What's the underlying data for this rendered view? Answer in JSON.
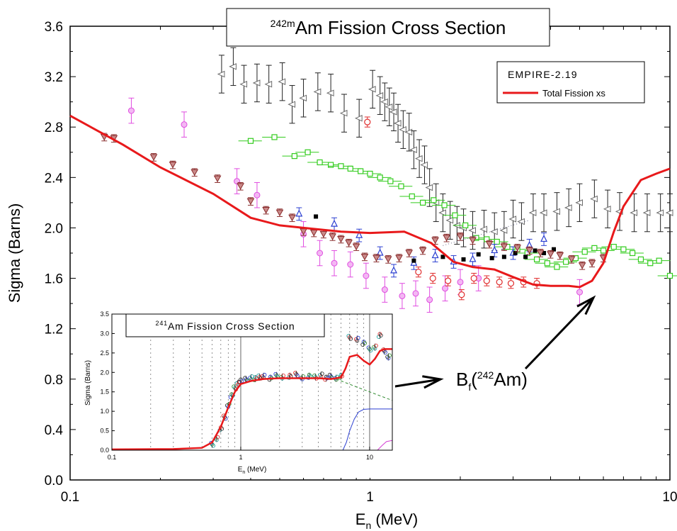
{
  "colors": {
    "fission_curve": "#e8191b",
    "triangles_dark": "#6b6b6b",
    "triangles_brown": "#8a2d2d",
    "squares_green": "#33cc1e",
    "circles_magenta": "#e04de0",
    "triangles_blue": "#2b3fd1",
    "squares_black": "#000000",
    "circles_red": "#e02c2c",
    "annotation_arrow": "#000000",
    "inset_blue": "#2b3fd1",
    "inset_green_dash": "#2f8a2f",
    "inset_magenta": "#d43fd4"
  },
  "chart_data": [
    {
      "type": "scatter",
      "title": "²⁴²ᵐAm Fission Cross Section",
      "title_parts": {
        "sup": "242m",
        "main": "Am Fission Cross Section"
      },
      "xlabel": "E (MeV)",
      "xlabel_parts": {
        "main": "E",
        "sub": "n",
        "unit": " (MeV)"
      },
      "ylabel": "Sigma (Barns)",
      "xscale": "log",
      "xlim": [
        0.1,
        10
      ],
      "ylim": [
        0.0,
        3.6
      ],
      "xticks": [
        0.1,
        1,
        10
      ],
      "xtick_labels": [
        "0.1",
        "1",
        "10"
      ],
      "yticks": [
        0.0,
        0.4,
        0.8,
        1.2,
        1.6,
        2.0,
        2.4,
        2.8,
        3.2,
        3.6
      ],
      "ytick_labels": [
        "0.0",
        "0.4",
        "0.8",
        "1.2",
        "1.6",
        "2.0",
        "2.4",
        "2.8",
        "3.2",
        "3.6"
      ],
      "grid": false,
      "legend_position": "top-right",
      "legend": {
        "heading": "EMPIRE-2.19",
        "entries": [
          "Total Fission xs"
        ]
      },
      "series": [
        {
          "name": "Total Fission xs",
          "mark": "line",
          "x": [
            0.1,
            0.15,
            0.2,
            0.3,
            0.4,
            0.5,
            0.6,
            0.8,
            1.0,
            1.3,
            1.6,
            1.9,
            2.2,
            2.6,
            3.0,
            3.5,
            4.0,
            4.6,
            5.0,
            5.5,
            6.0,
            6.5,
            7.0,
            8.0,
            9.0,
            10.0
          ],
          "y": [
            2.89,
            2.66,
            2.48,
            2.27,
            2.08,
            2.02,
            2.0,
            1.97,
            1.96,
            1.97,
            1.88,
            1.73,
            1.69,
            1.67,
            1.61,
            1.55,
            1.54,
            1.54,
            1.53,
            1.58,
            1.72,
            1.97,
            2.17,
            2.38,
            2.43,
            2.47
          ]
        },
        {
          "mark": "triangle-left-errorbar",
          "x": [
            0.32,
            0.35,
            0.38,
            0.42,
            0.46,
            0.51,
            0.55,
            0.6,
            0.67,
            0.74,
            0.82,
            0.92,
            1.02,
            1.08,
            1.12,
            1.16,
            1.2,
            1.24,
            1.29,
            1.35,
            1.4,
            1.46,
            1.52,
            1.58,
            1.66,
            1.75,
            1.85,
            1.95,
            2.05,
            2.2,
            2.4,
            2.6,
            2.8,
            3.0,
            3.2,
            3.5,
            3.8,
            4.2,
            4.6,
            5.0,
            5.6,
            6.2,
            6.8,
            7.6,
            8.4,
            9.3,
            10.0
          ],
          "y": [
            3.22,
            3.28,
            3.14,
            3.15,
            3.14,
            3.16,
            2.98,
            3.03,
            3.08,
            3.07,
            2.91,
            2.87,
            3.1,
            3.05,
            3.0,
            2.96,
            2.92,
            2.83,
            2.78,
            2.76,
            2.62,
            2.55,
            2.5,
            2.32,
            2.2,
            2.12,
            2.06,
            2.02,
            2.0,
            1.98,
            1.99,
            1.97,
            1.98,
            2.07,
            2.05,
            2.12,
            2.12,
            2.13,
            2.16,
            2.2,
            2.23,
            2.15,
            2.13,
            2.12,
            2.12,
            2.12,
            2.12
          ],
          "yerr": 0.15
        },
        {
          "mark": "triangle-down-errorbar",
          "x": [
            0.13,
            0.14,
            0.19,
            0.22,
            0.26,
            0.31,
            0.37,
            0.4,
            0.45,
            0.5,
            0.55,
            0.6,
            0.65,
            0.7,
            0.75,
            0.8,
            0.85,
            0.9,
            0.96,
            1.05,
            1.15,
            1.25,
            1.35,
            1.5,
            1.65,
            1.8,
            2.0,
            2.2,
            2.5,
            2.8,
            3.1,
            3.4,
            3.7,
            4.0,
            4.3,
            4.7,
            5.1,
            5.5,
            6.0
          ],
          "y": [
            2.72,
            2.71,
            2.56,
            2.5,
            2.44,
            2.39,
            2.33,
            2.21,
            2.14,
            2.12,
            2.08,
            1.97,
            1.96,
            1.95,
            1.93,
            1.91,
            1.88,
            1.85,
            1.77,
            1.76,
            1.75,
            1.76,
            1.8,
            1.82,
            1.9,
            1.92,
            1.93,
            1.9,
            1.87,
            1.85,
            1.84,
            1.82,
            1.8,
            1.79,
            1.78,
            1.75,
            1.7,
            1.72,
            1.76
          ],
          "yerr": 0.03
        },
        {
          "mark": "square-hollow-xerrorbar",
          "x": [
            0.4,
            0.48,
            0.56,
            0.62,
            0.68,
            0.74,
            0.8,
            0.86,
            0.93,
            1.0,
            1.08,
            1.17,
            1.27,
            1.38,
            1.5,
            1.63,
            1.77,
            1.92,
            2.08,
            2.26,
            2.45,
            2.65,
            2.87,
            3.1,
            3.35,
            3.6,
            3.9,
            4.2,
            4.5,
            4.85,
            5.2,
            5.6,
            6.0,
            6.5,
            7.0,
            7.5,
            8.0,
            8.6,
            9.2,
            10.0
          ],
          "y": [
            2.69,
            2.72,
            2.57,
            2.6,
            2.52,
            2.5,
            2.49,
            2.47,
            2.45,
            2.43,
            2.4,
            2.37,
            2.33,
            2.25,
            2.2,
            2.22,
            2.18,
            2.1,
            2.02,
            1.92,
            1.91,
            1.89,
            1.85,
            1.83,
            1.8,
            1.75,
            1.72,
            1.69,
            1.73,
            1.76,
            1.81,
            1.84,
            1.82,
            1.85,
            1.83,
            1.8,
            1.75,
            1.72,
            1.74,
            1.62
          ],
          "xerr_frac": 0.09
        },
        {
          "mark": "circle-cross-errorbar",
          "x": [
            0.16,
            0.24,
            0.36,
            0.42,
            0.6,
            0.68,
            0.76,
            0.86,
            0.97,
            1.12,
            1.28,
            1.42,
            1.58,
            1.78,
            2.0,
            2.3,
            5.0
          ],
          "y": [
            2.93,
            2.82,
            2.37,
            2.26,
            1.95,
            1.8,
            1.72,
            1.71,
            1.62,
            1.51,
            1.46,
            1.48,
            1.43,
            1.52,
            1.57,
            1.6,
            1.49
          ],
          "yerr": 0.1
        },
        {
          "mark": "triangle-up-blue",
          "x": [
            0.58,
            0.76,
            0.92,
            1.08,
            1.2,
            1.4,
            1.65,
            1.9,
            2.2,
            2.6,
            3.0,
            3.4,
            3.8
          ],
          "y": [
            2.11,
            2.03,
            1.94,
            1.8,
            1.66,
            1.72,
            1.78,
            1.73,
            1.75,
            1.82,
            1.8,
            1.86,
            1.91
          ],
          "yerr": 0.05
        },
        {
          "mark": "square-filled",
          "x": [
            0.66,
            1.4,
            1.75,
            2.05,
            2.3,
            2.55,
            2.8,
            3.05,
            3.3,
            3.55,
            3.8,
            4.1
          ],
          "y": [
            2.09,
            1.74,
            1.77,
            1.75,
            1.79,
            1.76,
            1.77,
            1.8,
            1.77,
            1.82,
            1.8,
            1.83
          ]
        },
        {
          "mark": "circle-hollow-red",
          "x": [
            0.98,
            1.45,
            1.62,
            1.82,
            2.02,
            2.22,
            2.45,
            2.7,
            2.95,
            3.25,
            3.6
          ],
          "y": [
            2.84,
            1.65,
            1.6,
            1.58,
            1.47,
            1.6,
            1.58,
            1.57,
            1.56,
            1.57,
            1.56
          ],
          "yerr": 0.04
        }
      ],
      "annotations": [
        {
          "text_main": "B",
          "text_sub": "f",
          "text_paren_open": "(",
          "text_sup": "242",
          "text_tail": "Am)"
        }
      ]
    },
    {
      "type": "line",
      "title": "²⁴¹Am Fission Cross Section",
      "title_parts": {
        "sup": "241",
        "main": "Am Fission Cross Section"
      },
      "xlabel": "E (MeV)",
      "xlabel_parts": {
        "main": "E",
        "sub": "n",
        "unit": " (MeV)"
      },
      "ylabel": "Sigma (Barns)",
      "xscale": "log",
      "xlim": [
        0.1,
        15
      ],
      "ylim": [
        0.0,
        3.5
      ],
      "xticks": [
        0.1,
        1,
        10
      ],
      "xtick_labels": [
        "0.1",
        "1",
        "10"
      ],
      "yticks": [
        0.0,
        0.5,
        1.0,
        1.5,
        2.0,
        2.5,
        3.0,
        3.5
      ],
      "ytick_labels": [
        "0.0",
        "0.5",
        "1.0",
        "1.5",
        "2.0",
        "2.5",
        "3.0",
        "3.5"
      ],
      "grid": true,
      "series": [
        {
          "mark": "line",
          "x": [
            0.1,
            0.3,
            0.5,
            0.6,
            0.7,
            0.8,
            0.9,
            1.0,
            1.2,
            1.5,
            2.0,
            3.0,
            4.0,
            5.0,
            6.0,
            6.5,
            7.0,
            8.0,
            9.0,
            10.0,
            11.0,
            12.0,
            13.0,
            15.0
          ],
          "y": [
            0.02,
            0.03,
            0.06,
            0.2,
            0.6,
            1.1,
            1.5,
            1.7,
            1.78,
            1.83,
            1.85,
            1.85,
            1.85,
            1.83,
            1.87,
            2.1,
            2.4,
            2.45,
            2.3,
            2.2,
            2.35,
            2.55,
            2.6,
            2.6
          ]
        },
        {
          "mark": "dashed-line",
          "x": [
            5.5,
            8.0,
            10.0,
            12.0,
            15.0
          ],
          "y": [
            1.83,
            1.62,
            1.5,
            1.4,
            1.28
          ]
        },
        {
          "mark": "line",
          "x": [
            6.2,
            6.6,
            7.0,
            7.6,
            8.2,
            9.0,
            10.0,
            12.0,
            15.0
          ],
          "y": [
            0.0,
            0.2,
            0.5,
            0.8,
            0.98,
            1.05,
            1.06,
            1.06,
            1.06
          ]
        },
        {
          "mark": "line",
          "x": [
            11.5,
            12.5,
            13.5,
            15.0
          ],
          "y": [
            0.0,
            0.12,
            0.22,
            0.25
          ]
        },
        {
          "mark": "scatter-cloud",
          "x": [
            0.6,
            0.65,
            0.7,
            0.75,
            0.8,
            0.85,
            0.9,
            0.95,
            1.0,
            1.1,
            1.2,
            1.3,
            1.4,
            1.5,
            1.7,
            1.9,
            2.1,
            2.4,
            2.7,
            3.0,
            3.4,
            3.8,
            4.2,
            4.6,
            5.0,
            5.5,
            6.0,
            7.0,
            8.0,
            9.0,
            10.0,
            11.0,
            12.0,
            13.0,
            14.0
          ],
          "y": [
            0.15,
            0.3,
            0.55,
            0.85,
            1.15,
            1.4,
            1.6,
            1.72,
            1.78,
            1.82,
            1.86,
            1.84,
            1.88,
            1.9,
            1.85,
            1.92,
            1.88,
            1.9,
            1.95,
            1.86,
            1.9,
            1.88,
            1.93,
            1.85,
            1.9,
            1.85,
            1.9,
            2.9,
            2.85,
            2.75,
            2.6,
            2.65,
            2.95,
            2.55,
            2.4
          ]
        }
      ]
    }
  ]
}
